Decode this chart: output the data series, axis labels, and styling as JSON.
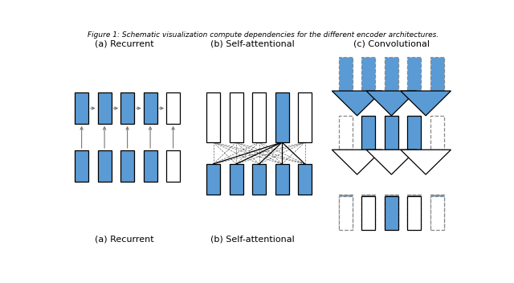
{
  "blue_color": "#5B9BD5",
  "white_color": "#FFFFFF",
  "bg_color": "#FFFFFF",
  "caption": "Figure 1: Schematic visualization compute dependencies for the different encoder architectures.",
  "label_a": "(a) Recurrent",
  "label_b": "(b) Self-attentional",
  "label_c": "(c) Convolutional",
  "fig_width": 6.4,
  "fig_height": 3.52,
  "arrow_color": "#777777",
  "dashed_edge": "#888888"
}
